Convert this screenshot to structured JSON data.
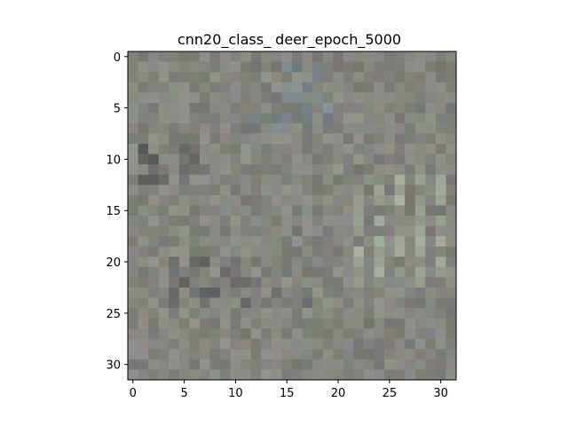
{
  "figure": {
    "title": "cnn20_class_ deer_epoch_5000"
  },
  "chart_data": {
    "type": "heatmap",
    "title": "cnn20_class_ deer_epoch_5000",
    "grid_size": [
      32,
      32
    ],
    "x_ticks": [
      "0",
      "5",
      "10",
      "15",
      "20",
      "25",
      "30"
    ],
    "y_ticks": [
      "0",
      "5",
      "10",
      "15",
      "20",
      "25",
      "30"
    ],
    "x_tick_values": [
      0,
      5,
      10,
      15,
      20,
      25,
      30
    ],
    "y_tick_values": [
      0,
      5,
      10,
      15,
      20,
      25,
      30
    ],
    "xlim": [
      -0.5,
      31.5
    ],
    "ylim": [
      31.5,
      -0.5
    ],
    "grid": false,
    "base_color": "#84857f",
    "dominant_colors": [
      "#84857f",
      "#8f8e86",
      "#7a7d80",
      "#96998a",
      "#6f7276",
      "#8a8378"
    ],
    "content": "32x32 RGB visualization of a learned class image; mostly neutral gray noise with greenish-gray vertical streaks in the lower right and darker spots near rows 8-12 on the left"
  }
}
